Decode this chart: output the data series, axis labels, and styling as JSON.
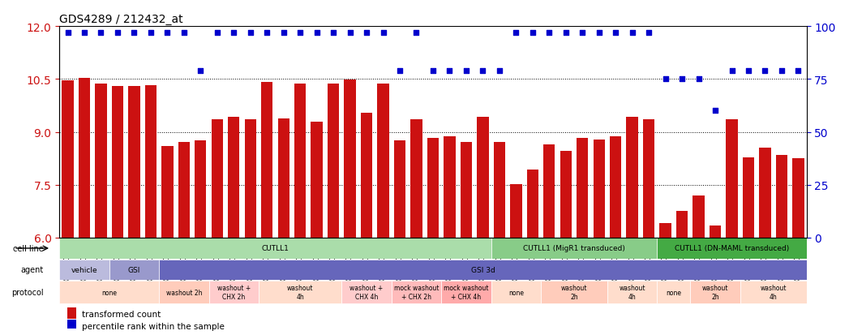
{
  "title": "GDS4289 / 212432_at",
  "sample_ids": [
    "GSM731500",
    "GSM731501",
    "GSM731502",
    "GSM731503",
    "GSM731504",
    "GSM731505",
    "GSM731518",
    "GSM731519",
    "GSM731520",
    "GSM731506",
    "GSM731507",
    "GSM731508",
    "GSM731509",
    "GSM731510",
    "GSM731511",
    "GSM731512",
    "GSM731513",
    "GSM731514",
    "GSM731515",
    "GSM731516",
    "GSM731517",
    "GSM731521",
    "GSM731522",
    "GSM731523",
    "GSM731524",
    "GSM731525",
    "GSM731526",
    "GSM731527",
    "GSM731528",
    "GSM731529",
    "GSM731531",
    "GSM731532",
    "GSM731533",
    "GSM731534",
    "GSM731535",
    "GSM731536",
    "GSM731537",
    "GSM731538",
    "GSM731539",
    "GSM731540",
    "GSM731541",
    "GSM731542",
    "GSM731543",
    "GSM731544",
    "GSM731545"
  ],
  "bar_values": [
    10.47,
    10.52,
    10.37,
    10.3,
    10.3,
    10.32,
    8.6,
    8.72,
    8.77,
    9.35,
    9.42,
    9.35,
    10.42,
    9.37,
    10.38,
    9.28,
    10.38,
    10.48,
    9.55,
    10.38,
    8.77,
    9.35,
    8.82,
    8.87,
    8.72,
    9.42,
    8.72,
    7.52,
    7.92,
    8.65,
    8.45,
    8.82,
    8.78,
    8.87,
    9.42,
    9.35,
    6.42,
    6.75,
    7.2,
    6.35,
    9.35,
    8.28,
    8.55,
    8.35,
    8.25
  ],
  "dot_values": [
    97,
    97,
    97,
    97,
    97,
    97,
    97,
    97,
    79,
    97,
    97,
    97,
    97,
    97,
    97,
    97,
    97,
    97,
    97,
    97,
    79,
    97,
    79,
    79,
    79,
    79,
    79,
    97,
    97,
    97,
    97,
    97,
    97,
    97,
    97,
    97,
    75,
    75,
    75,
    60,
    79,
    79,
    79,
    79,
    79
  ],
  "ylim_left": [
    6,
    12
  ],
  "ylim_right": [
    0,
    100
  ],
  "yticks_left": [
    6,
    7.5,
    9,
    10.5,
    12
  ],
  "yticks_right": [
    0,
    25,
    50,
    75,
    100
  ],
  "bar_color": "#cc1111",
  "dot_color": "#0000cc",
  "cell_line_groups": [
    {
      "label": "CUTLL1",
      "start": 0,
      "end": 26,
      "color": "#aaddaa"
    },
    {
      "label": "CUTLL1 (MigR1 transduced)",
      "start": 26,
      "end": 36,
      "color": "#88cc88"
    },
    {
      "label": "CUTLL1 (DN-MAML transduced)",
      "start": 36,
      "end": 45,
      "color": "#44aa44"
    }
  ],
  "agent_groups": [
    {
      "label": "vehicle",
      "start": 0,
      "end": 3,
      "color": "#bbbbdd"
    },
    {
      "label": "GSI",
      "start": 3,
      "end": 6,
      "color": "#9999cc"
    },
    {
      "label": "GSI 3d",
      "start": 6,
      "end": 45,
      "color": "#6666bb"
    }
  ],
  "protocol_groups": [
    {
      "label": "none",
      "start": 0,
      "end": 6,
      "color": "#ffddcc"
    },
    {
      "label": "washout 2h",
      "start": 6,
      "end": 9,
      "color": "#ffccbb"
    },
    {
      "label": "washout +\nCHX 2h",
      "start": 9,
      "end": 12,
      "color": "#ffcccc"
    },
    {
      "label": "washout\n4h",
      "start": 12,
      "end": 17,
      "color": "#ffddcc"
    },
    {
      "label": "washout +\nCHX 4h",
      "start": 17,
      "end": 20,
      "color": "#ffcccc"
    },
    {
      "label": "mock washout\n+ CHX 2h",
      "start": 20,
      "end": 23,
      "color": "#ffbbbb"
    },
    {
      "label": "mock washout\n+ CHX 4h",
      "start": 23,
      "end": 26,
      "color": "#ffaaaa"
    },
    {
      "label": "none",
      "start": 26,
      "end": 29,
      "color": "#ffddcc"
    },
    {
      "label": "washout\n2h",
      "start": 29,
      "end": 33,
      "color": "#ffccbb"
    },
    {
      "label": "washout\n4h",
      "start": 33,
      "end": 36,
      "color": "#ffddcc"
    },
    {
      "label": "none",
      "start": 36,
      "end": 38,
      "color": "#ffddcc"
    },
    {
      "label": "washout\n2h",
      "start": 38,
      "end": 41,
      "color": "#ffccbb"
    },
    {
      "label": "washout\n4h",
      "start": 41,
      "end": 45,
      "color": "#ffddcc"
    }
  ],
  "legend_items": [
    {
      "label": "transformed count",
      "color": "#cc1111",
      "marker": "s"
    },
    {
      "label": "percentile rank within the sample",
      "color": "#0000cc",
      "marker": "s"
    }
  ]
}
